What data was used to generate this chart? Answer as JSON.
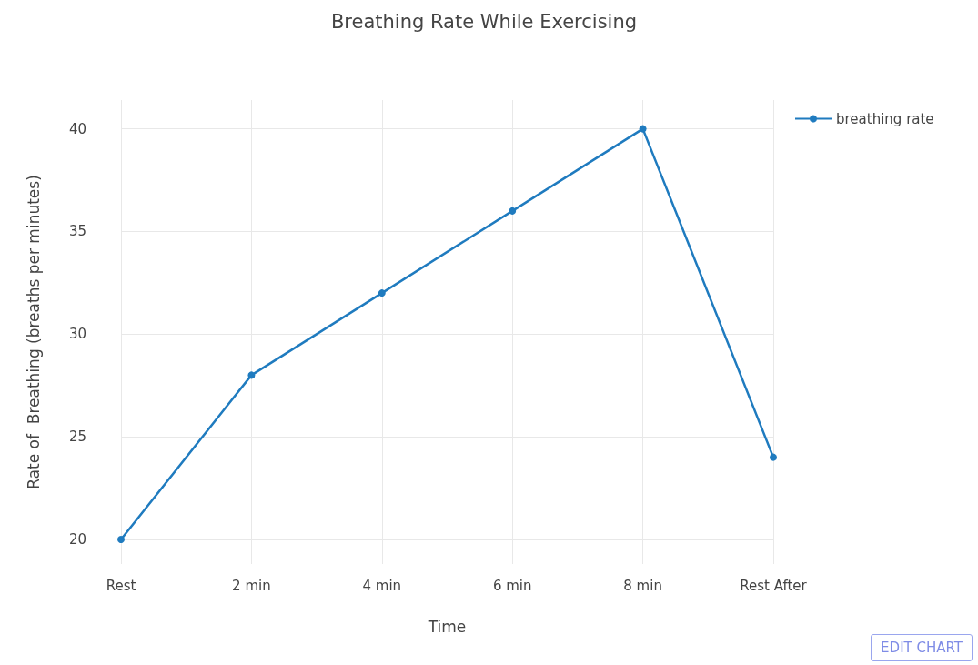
{
  "chart_data": {
    "type": "line",
    "title": "Breathing Rate While Exercising",
    "xlabel": "Time",
    "ylabel": "Rate of  Breathing (breaths per minutes)",
    "categories": [
      "Rest",
      "2 min",
      "4 min",
      "6 min",
      "8 min",
      "Rest After"
    ],
    "series": [
      {
        "name": "breathing rate",
        "color": "#1f7bbf",
        "values": [
          20,
          28,
          32,
          36,
          40,
          24
        ]
      }
    ],
    "ylim": [
      18.8,
      41.4
    ],
    "yticks": [
      20,
      25,
      30,
      35,
      40
    ],
    "grid": true,
    "legend": "top right",
    "marker": "circle",
    "line_style": "solid",
    "annotations": [
      "EDIT CHART"
    ]
  }
}
